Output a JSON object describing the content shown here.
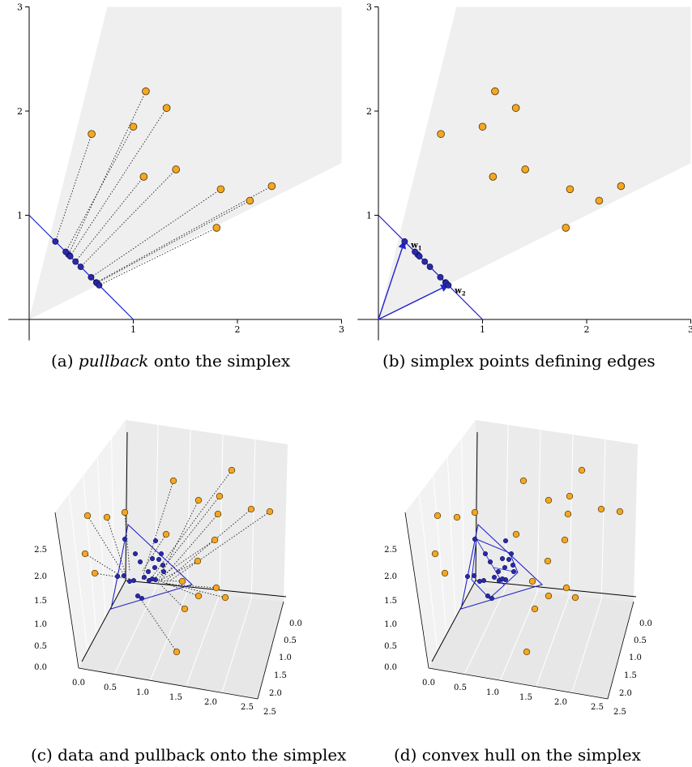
{
  "colors": {
    "orange": "#f5a623",
    "blue": "#2222cc",
    "cone": "#efefef",
    "pane": "#f2f2f2",
    "grid": "#ffffff"
  },
  "captions": {
    "a_prefix": "(a) ",
    "a_italic": "pullback",
    "a_suffix": " onto the simplex",
    "b": "(b) simplex points defining edges",
    "c": "(c) data and pullback onto the simplex",
    "d": "(d) convex hull on the simplex"
  },
  "panel_b_labels": {
    "w1": "w",
    "w1_sub": "1",
    "w2": "w",
    "w2_sub": "2"
  },
  "chart_data": [
    {
      "panel": "a",
      "type": "scatter",
      "xlim": [
        0,
        3
      ],
      "ylim": [
        0,
        3
      ],
      "xticks": [
        "1",
        "2",
        "3"
      ],
      "yticks": [
        "1",
        "2",
        "3"
      ],
      "cone_slopes": [
        0.5,
        4.0
      ],
      "simplex_line": [
        [
          0,
          1
        ],
        [
          1,
          0
        ]
      ],
      "points": [
        [
          0.6,
          1.78
        ],
        [
          1.12,
          2.19
        ],
        [
          1.0,
          1.85
        ],
        [
          1.32,
          2.03
        ],
        [
          1.1,
          1.37
        ],
        [
          1.41,
          1.44
        ],
        [
          1.84,
          1.25
        ],
        [
          2.33,
          1.28
        ],
        [
          2.12,
          1.14
        ],
        [
          1.8,
          0.88
        ]
      ],
      "projections": [
        [
          0.252,
          0.748
        ],
        [
          0.377,
          0.623
        ],
        [
          0.351,
          0.649
        ],
        [
          0.394,
          0.606
        ],
        [
          0.445,
          0.555
        ],
        [
          0.495,
          0.505
        ],
        [
          0.595,
          0.405
        ],
        [
          0.645,
          0.355
        ],
        [
          0.65,
          0.35
        ],
        [
          0.672,
          0.328
        ]
      ]
    },
    {
      "panel": "b",
      "type": "scatter",
      "xlim": [
        0,
        3
      ],
      "ylim": [
        0,
        3
      ],
      "xticks": [
        "1",
        "2",
        "3"
      ],
      "yticks": [
        "1",
        "2",
        "3"
      ],
      "cone_slopes": [
        0.5,
        4.0
      ],
      "simplex_line": [
        [
          0,
          1
        ],
        [
          1,
          0
        ]
      ],
      "points": [
        [
          0.6,
          1.78
        ],
        [
          1.12,
          2.19
        ],
        [
          1.0,
          1.85
        ],
        [
          1.32,
          2.03
        ],
        [
          1.1,
          1.37
        ],
        [
          1.41,
          1.44
        ],
        [
          1.84,
          1.25
        ],
        [
          2.33,
          1.28
        ],
        [
          2.12,
          1.14
        ],
        [
          1.8,
          0.88
        ]
      ],
      "projections": [
        [
          0.252,
          0.748
        ],
        [
          0.377,
          0.623
        ],
        [
          0.351,
          0.649
        ],
        [
          0.394,
          0.606
        ],
        [
          0.445,
          0.555
        ],
        [
          0.495,
          0.505
        ],
        [
          0.595,
          0.405
        ],
        [
          0.645,
          0.355
        ],
        [
          0.65,
          0.35
        ],
        [
          0.672,
          0.328
        ]
      ],
      "vectors": [
        [
          0.25,
          0.75
        ],
        [
          0.67,
          0.33
        ]
      ]
    },
    {
      "panel": "c",
      "type": "scatter3d",
      "x_ticks": [
        "0.0",
        "0.5",
        "1.0",
        "1.5",
        "2.0",
        "2.5"
      ],
      "y_ticks": [
        "0.0",
        "0.5",
        "1.0",
        "1.5",
        "2.0",
        "2.5"
      ],
      "z_ticks": [
        "0.0",
        "0.5",
        "1.0",
        "1.5",
        "2.0",
        "2.5"
      ]
    },
    {
      "panel": "d",
      "type": "scatter3d",
      "x_ticks": [
        "0.0",
        "0.5",
        "1.0",
        "1.5",
        "2.0",
        "2.5"
      ],
      "y_ticks": [
        "0.0",
        "0.5",
        "1.0",
        "1.5",
        "2.0",
        "2.5"
      ],
      "z_ticks": [
        "0.0",
        "0.5",
        "1.0",
        "1.5",
        "2.0",
        "2.5"
      ]
    }
  ]
}
